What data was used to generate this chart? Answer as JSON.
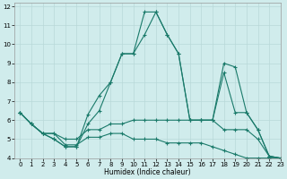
{
  "xlabel": "Humidex (Indice chaleur)",
  "background_color": "#d0ecec",
  "grid_color": "#b8d8d8",
  "line_color": "#1a7a6a",
  "xlim": [
    -0.5,
    23
  ],
  "ylim": [
    4,
    12.2
  ],
  "xticks": [
    0,
    1,
    2,
    3,
    4,
    5,
    6,
    7,
    8,
    9,
    10,
    11,
    12,
    13,
    14,
    15,
    16,
    17,
    18,
    19,
    20,
    21,
    22,
    23
  ],
  "yticks": [
    4,
    5,
    6,
    7,
    8,
    9,
    10,
    11,
    12
  ],
  "series": [
    [
      6.4,
      5.8,
      5.3,
      5.0,
      4.6,
      4.6,
      6.3,
      7.3,
      8.0,
      9.5,
      9.5,
      10.5,
      11.7,
      10.5,
      9.5,
      6.0,
      6.0,
      6.0,
      9.0,
      8.8,
      6.4,
      5.5,
      4.1,
      4.0
    ],
    [
      6.4,
      5.8,
      5.3,
      5.3,
      5.0,
      5.0,
      5.5,
      5.5,
      5.8,
      5.8,
      6.0,
      6.0,
      6.0,
      6.0,
      6.0,
      6.0,
      6.0,
      6.0,
      5.5,
      5.5,
      5.5,
      5.0,
      4.1,
      4.0
    ],
    [
      6.4,
      5.8,
      5.3,
      5.3,
      4.7,
      4.7,
      5.1,
      5.1,
      5.3,
      5.3,
      5.0,
      5.0,
      5.0,
      4.8,
      4.8,
      4.8,
      4.8,
      4.6,
      4.4,
      4.2,
      4.0,
      4.0,
      4.0,
      4.0
    ],
    [
      6.4,
      5.8,
      5.3,
      5.0,
      4.6,
      4.6,
      5.8,
      6.5,
      8.0,
      9.5,
      9.5,
      11.7,
      11.7,
      10.5,
      9.5,
      6.0,
      6.0,
      6.0,
      8.5,
      6.4,
      6.4,
      5.5,
      4.1,
      4.0
    ]
  ]
}
